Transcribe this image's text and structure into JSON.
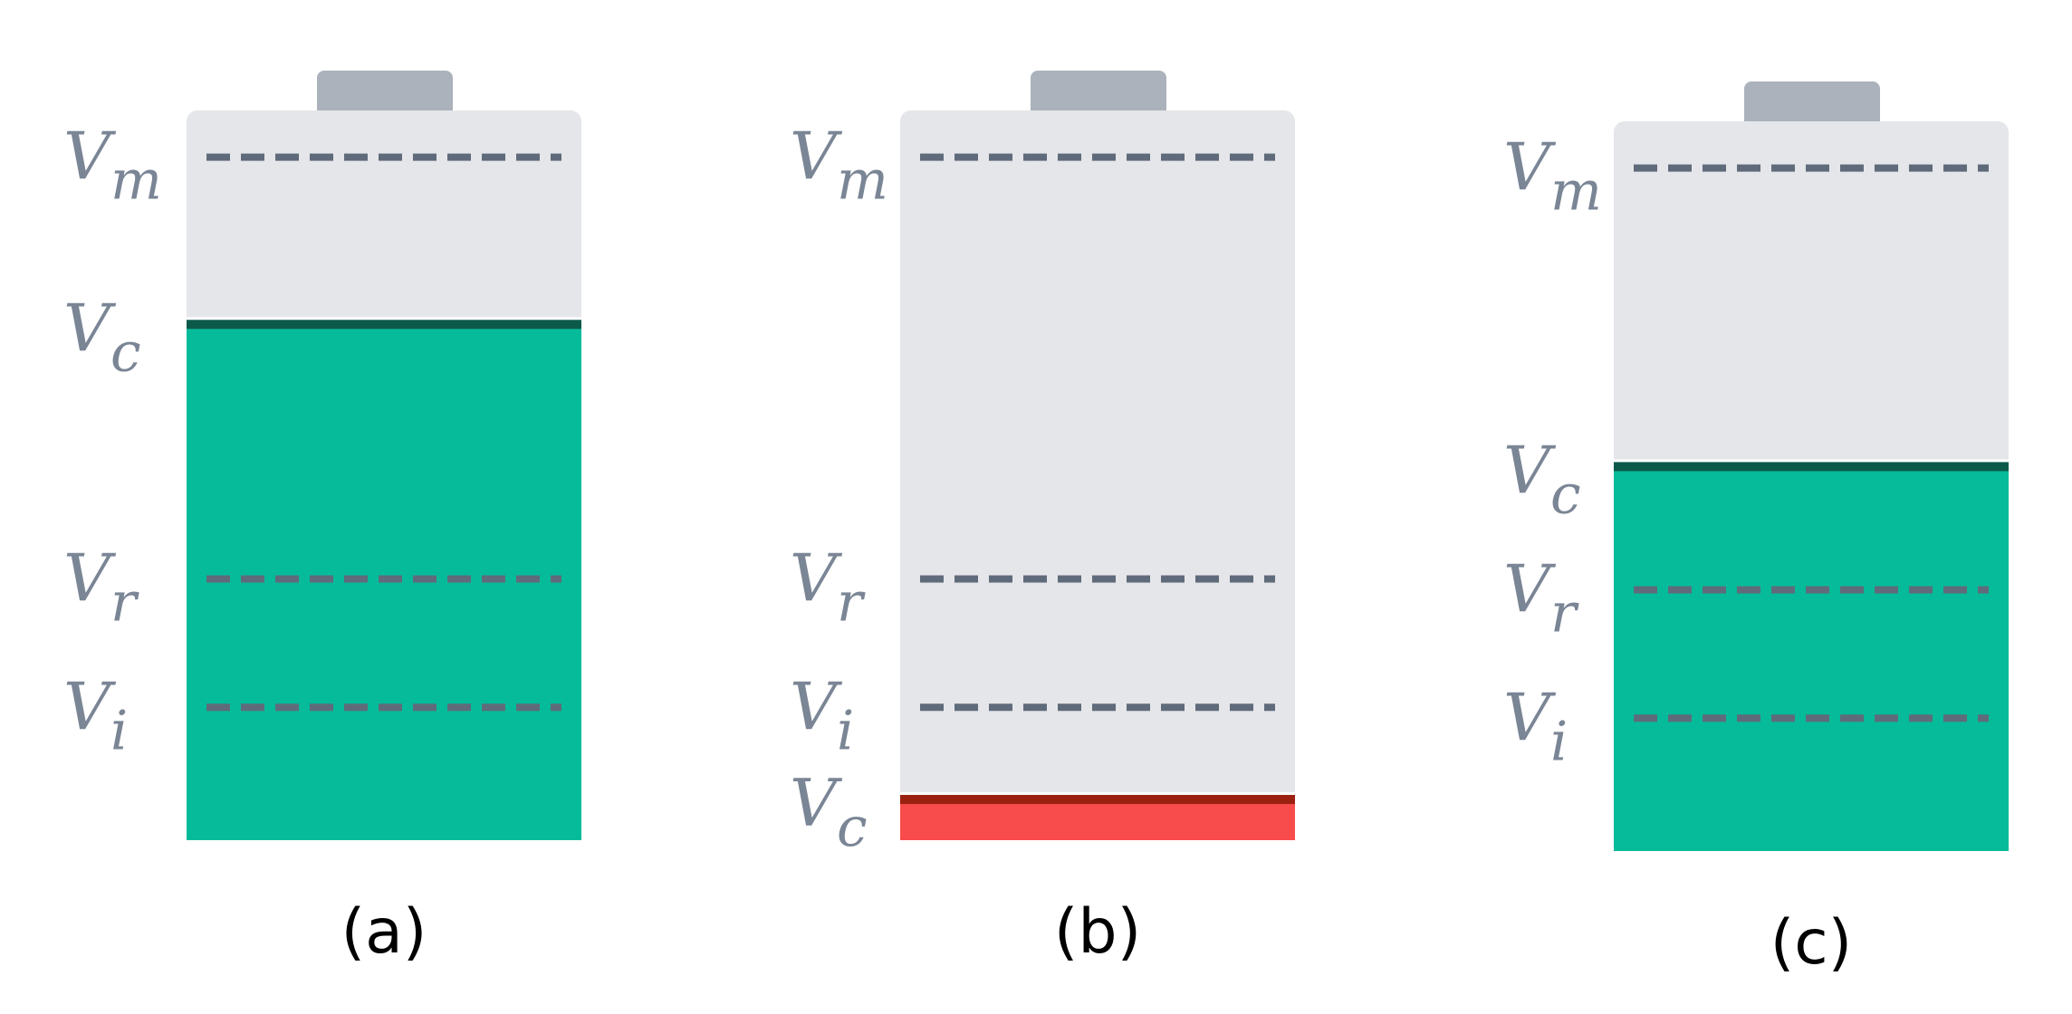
{
  "colors": {
    "background": "#ffffff",
    "battery_body": "#e5e6ea",
    "battery_cap": "#abb2bb",
    "dashed_line": "#5f6b7a",
    "label_text": "#7a8595",
    "charged_fill": "#06bb9a",
    "charged_edge": "#0c5a4a",
    "low_fill": "#f84c4c",
    "low_edge": "#9a2010"
  },
  "label_symbol": "V",
  "panels": [
    {
      "caption": "(a)",
      "state": "charged",
      "charge_level": 0.713,
      "levels": [
        {
          "sub": "m",
          "value": 0.936,
          "style": "dashed"
        },
        {
          "sub": "c",
          "value": 0.713,
          "style": "fill-edge"
        },
        {
          "sub": "r",
          "value": 0.358,
          "style": "dashed"
        },
        {
          "sub": "i",
          "value": 0.182,
          "style": "dashed"
        }
      ]
    },
    {
      "caption": "(b)",
      "state": "low",
      "charge_level": 0.062,
      "levels": [
        {
          "sub": "m",
          "value": 0.936,
          "style": "dashed"
        },
        {
          "sub": "r",
          "value": 0.358,
          "style": "dashed"
        },
        {
          "sub": "i",
          "value": 0.182,
          "style": "dashed"
        },
        {
          "sub": "c",
          "value": 0.062,
          "style": "fill-edge"
        }
      ]
    },
    {
      "caption": "(c)",
      "state": "charged",
      "charge_level": 0.533,
      "levels": [
        {
          "sub": "m",
          "value": 0.936,
          "style": "dashed"
        },
        {
          "sub": "c",
          "value": 0.533,
          "style": "fill-edge"
        },
        {
          "sub": "r",
          "value": 0.358,
          "style": "dashed"
        },
        {
          "sub": "i",
          "value": 0.182,
          "style": "dashed"
        }
      ]
    }
  ]
}
